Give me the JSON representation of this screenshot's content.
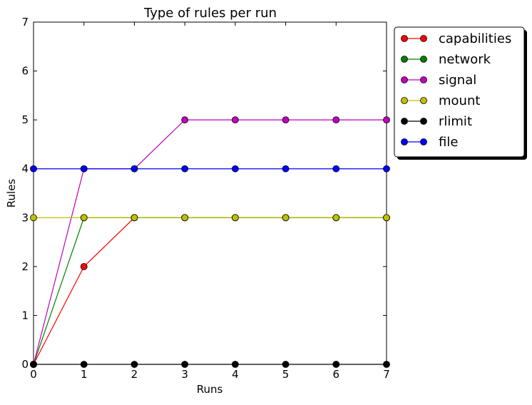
{
  "chart_data": {
    "type": "line",
    "title": "Type of rules per run",
    "xlabel": "Runs",
    "ylabel": "Rules",
    "xlim": [
      0,
      7
    ],
    "ylim": [
      0,
      7
    ],
    "x": [
      0,
      1,
      2,
      3,
      4,
      5,
      6,
      7
    ],
    "xticks": [
      "0",
      "1",
      "2",
      "3",
      "4",
      "5",
      "6",
      "7"
    ],
    "yticks": [
      "0",
      "1",
      "2",
      "3",
      "4",
      "5",
      "6",
      "7"
    ],
    "grid": false,
    "legend_position": "outside top-right",
    "series": [
      {
        "name": "capabilities",
        "color": "#ff0000",
        "values": [
          0,
          2,
          3,
          3,
          3,
          3,
          3,
          3
        ]
      },
      {
        "name": "network",
        "color": "#008000",
        "values": [
          0,
          3,
          3,
          3,
          3,
          3,
          3,
          3
        ]
      },
      {
        "name": "signal",
        "color": "#bf00bf",
        "values": [
          0,
          4,
          4,
          5,
          5,
          5,
          5,
          5
        ]
      },
      {
        "name": "mount",
        "color": "#bfbf00",
        "values": [
          3,
          3,
          3,
          3,
          3,
          3,
          3,
          3
        ]
      },
      {
        "name": "rlimit",
        "color": "#000000",
        "values": [
          0,
          0,
          0,
          0,
          0,
          0,
          0,
          0
        ]
      },
      {
        "name": "file",
        "color": "#0000ff",
        "values": [
          4,
          4,
          4,
          4,
          4,
          4,
          4,
          4
        ]
      }
    ]
  }
}
